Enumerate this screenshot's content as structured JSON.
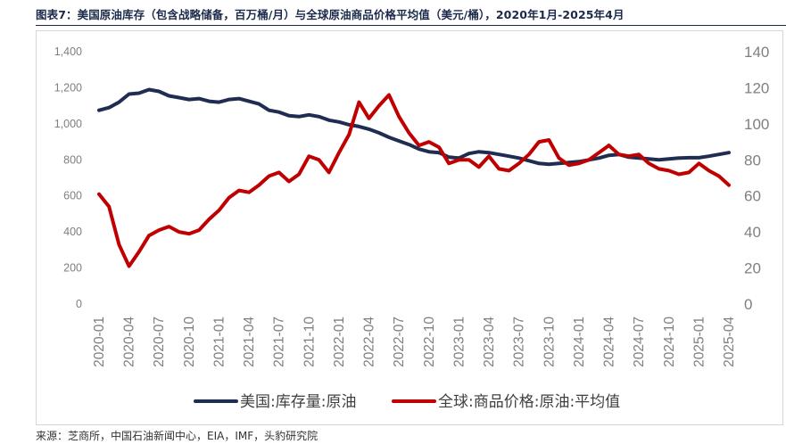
{
  "title": "图表7：美国原油库存（包含战略储备，百万桶/月）与全球原油商品价格平均值（美元/桶），2020年1月-2025年4月",
  "source": "来源：芝商所，中国石油新闻中心，EIA，IMF，头豹研究院",
  "colors": {
    "inventory": "#1f2d52",
    "price": "#c00000",
    "tick": "#7f7f7f",
    "frame": "#d6d6d6"
  },
  "chart_data": {
    "type": "line",
    "x_tick_labels": [
      "2020-01",
      "2020-04",
      "2020-07",
      "2020-10",
      "2021-01",
      "2021-04",
      "2021-07",
      "2021-10",
      "2022-01",
      "2022-04",
      "2022-07",
      "2022-10",
      "2023-01",
      "2023-04",
      "2023-07",
      "2023-10",
      "2024-01",
      "2024-04",
      "2024-07",
      "2024-10",
      "2025-01",
      "2025-04"
    ],
    "y_left": {
      "min": 0,
      "max": 1400,
      "ticks": [
        "0",
        "200",
        "400",
        "600",
        "800",
        "1,000",
        "1,200",
        "1,400"
      ]
    },
    "y_right": {
      "min": 0,
      "max": 140,
      "ticks": [
        "0",
        "20",
        "40",
        "60",
        "80",
        "100",
        "120",
        "140"
      ]
    },
    "legend_position": "bottom",
    "grid": false,
    "series": [
      {
        "name": "美国:库存量:原油",
        "axis": "left",
        "values": [
          1075,
          1090,
          1120,
          1165,
          1170,
          1190,
          1180,
          1155,
          1145,
          1135,
          1140,
          1125,
          1120,
          1135,
          1140,
          1125,
          1110,
          1075,
          1065,
          1045,
          1040,
          1050,
          1040,
          1020,
          1010,
          995,
          985,
          970,
          950,
          925,
          905,
          885,
          860,
          845,
          840,
          815,
          810,
          835,
          845,
          840,
          830,
          820,
          810,
          795,
          780,
          775,
          780,
          785,
          790,
          800,
          810,
          825,
          830,
          815,
          810,
          805,
          800,
          805,
          810,
          812,
          812,
          820,
          830,
          840
        ]
      },
      {
        "name": "全球:商品价格:原油:平均值",
        "axis": "right",
        "values": [
          61,
          54,
          33,
          21,
          29,
          38,
          41,
          43,
          40,
          39,
          41,
          47,
          52,
          59,
          63,
          62,
          66,
          71,
          73,
          68,
          72,
          82,
          80,
          73,
          84,
          94,
          112,
          103,
          110,
          116,
          104,
          95,
          88,
          90,
          87,
          78,
          80,
          80,
          76,
          82,
          75,
          74,
          78,
          83,
          90,
          91,
          81,
          77,
          78,
          80,
          84,
          88,
          83,
          82,
          83,
          78,
          75,
          74,
          72,
          73,
          78,
          74,
          71,
          66
        ]
      }
    ]
  }
}
